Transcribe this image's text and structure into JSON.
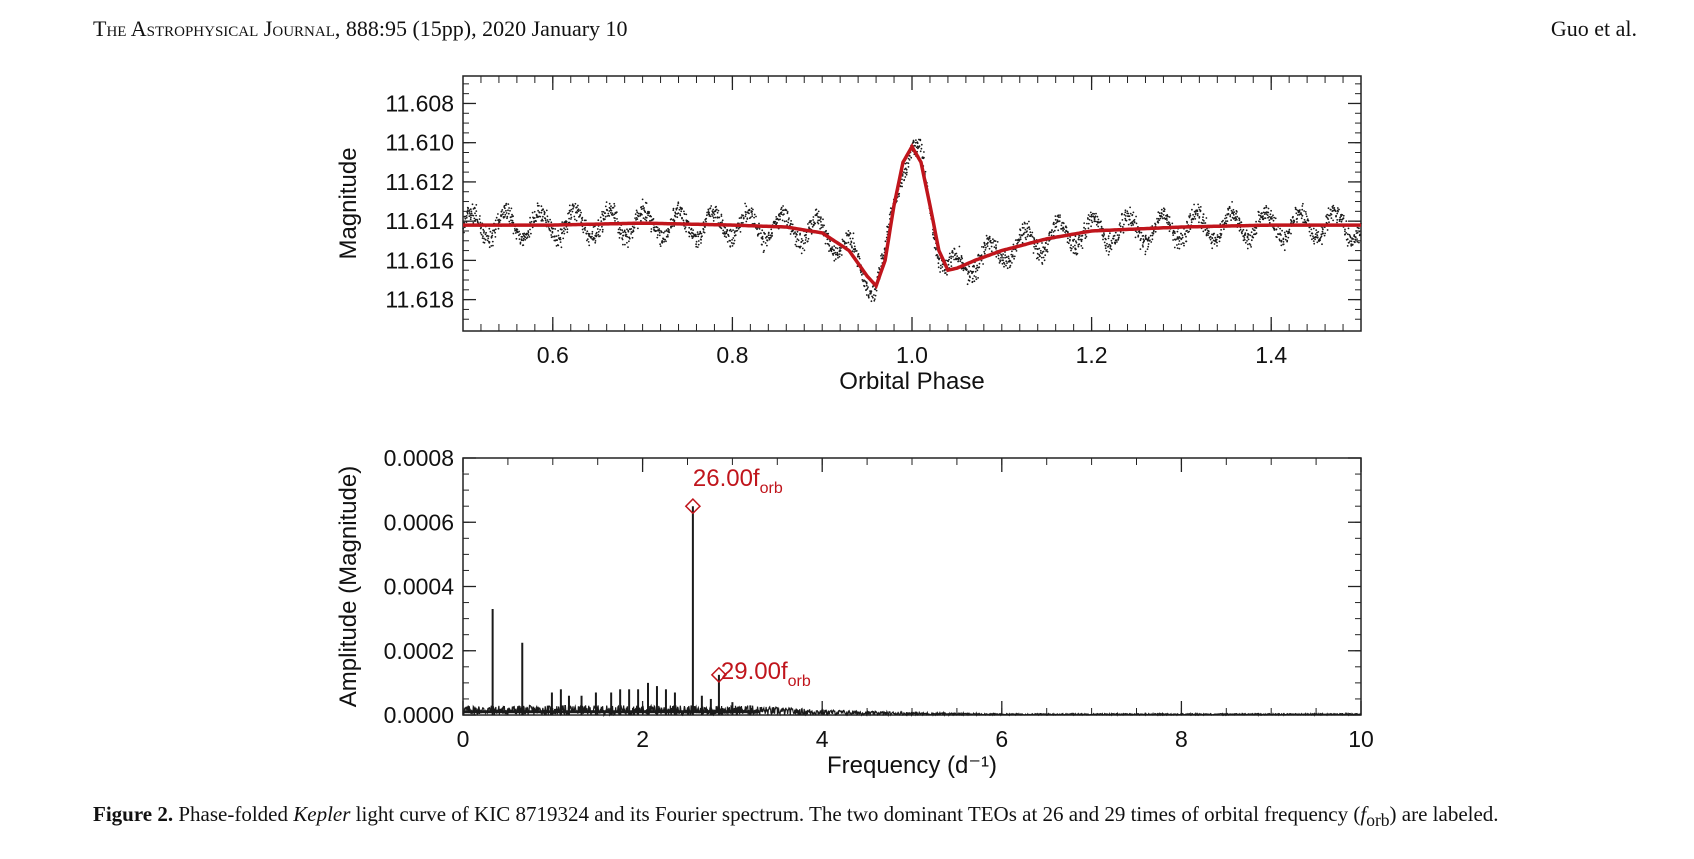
{
  "header": {
    "journal_left": "The Astrophysical Journal,",
    "journal_right": " 888:95 (15pp), 2020 January 10",
    "authors": "Guo et al."
  },
  "colors": {
    "model": "#c0151c",
    "data": "#1a1a1a",
    "label": "#c0151c"
  },
  "caption": {
    "label": "Figure 2.",
    "text1": " Phase-folded ",
    "kepler": "Kepler",
    "text2": " light curve of KIC 8719324 and its Fourier spectrum. The two dominant TEOs at 26 and 29 times of orbital frequency (",
    "f": "f",
    "sub": "orb",
    "text3": ") are labeled."
  },
  "chart_data": [
    {
      "type": "scatter",
      "xlabel": "Orbital Phase",
      "ylabel": "Magnitude",
      "xlim": [
        0.5,
        1.5
      ],
      "ylim": [
        11.6196,
        11.6066
      ],
      "y_inverted": true,
      "xticks": [
        "0.6",
        "0.8",
        "1.0",
        "1.2",
        "1.4"
      ],
      "yticks": [
        "11.608",
        "11.610",
        "11.612",
        "11.614",
        "11.616",
        "11.618"
      ],
      "series": [
        {
          "kind": "data points (folded light curve)",
          "oscillation_cycles_per_phase": 26,
          "oscillation_amplitude_mag": 0.0007,
          "scatter_mag": 0.0005
        },
        {
          "kind": "binary model curve",
          "x": [
            0.5,
            0.6,
            0.7,
            0.8,
            0.86,
            0.9,
            0.93,
            0.95,
            0.96,
            0.97,
            0.98,
            0.99,
            1.0,
            1.01,
            1.02,
            1.03,
            1.04,
            1.05,
            1.07,
            1.1,
            1.15,
            1.2,
            1.3,
            1.4,
            1.5
          ],
          "y": [
            11.6142,
            11.6142,
            11.6141,
            11.6142,
            11.6143,
            11.6146,
            11.6155,
            11.6168,
            11.6173,
            11.616,
            11.6132,
            11.611,
            11.6102,
            11.611,
            11.6132,
            11.6155,
            11.6165,
            11.6164,
            11.616,
            11.6155,
            11.6149,
            11.6145,
            11.6143,
            11.6142,
            11.6142
          ]
        }
      ]
    },
    {
      "type": "line",
      "xlabel": "Frequency (d⁻¹)",
      "ylabel": "Amplitude (Magnitude)",
      "xlim": [
        0,
        10
      ],
      "ylim": [
        0,
        0.0008
      ],
      "xticks": [
        "0",
        "2",
        "4",
        "6",
        "8",
        "10"
      ],
      "yticks": [
        "0.0000",
        "0.0002",
        "0.0004",
        "0.0006",
        "0.0008"
      ],
      "peaks": [
        {
          "x": 0.33,
          "y": 0.00033
        },
        {
          "x": 0.66,
          "y": 0.000225
        },
        {
          "x": 0.99,
          "y": 7e-05
        },
        {
          "x": 1.09,
          "y": 8e-05
        },
        {
          "x": 1.18,
          "y": 6e-05
        },
        {
          "x": 1.32,
          "y": 6e-05
        },
        {
          "x": 1.48,
          "y": 7e-05
        },
        {
          "x": 1.65,
          "y": 7e-05
        },
        {
          "x": 1.75,
          "y": 8e-05
        },
        {
          "x": 1.85,
          "y": 8e-05
        },
        {
          "x": 1.95,
          "y": 8e-05
        },
        {
          "x": 2.06,
          "y": 0.0001
        },
        {
          "x": 2.16,
          "y": 9e-05
        },
        {
          "x": 2.26,
          "y": 8e-05
        },
        {
          "x": 2.36,
          "y": 7e-05
        },
        {
          "x": 2.56,
          "y": 0.00065
        },
        {
          "x": 2.66,
          "y": 6e-05
        },
        {
          "x": 2.76,
          "y": 5e-05
        },
        {
          "x": 2.85,
          "y": 0.000125
        },
        {
          "x": 3.0,
          "y": 4e-05
        },
        {
          "x": 3.2,
          "y": 3e-05
        }
      ],
      "noise_floor": 3e-05,
      "annotations": [
        {
          "x": 2.56,
          "y": 0.00065,
          "label": "26.00",
          "sub": "orb",
          "f": "f"
        },
        {
          "x": 2.85,
          "y": 0.000125,
          "label": "29.00",
          "sub": "orb",
          "f": "f"
        }
      ]
    }
  ]
}
